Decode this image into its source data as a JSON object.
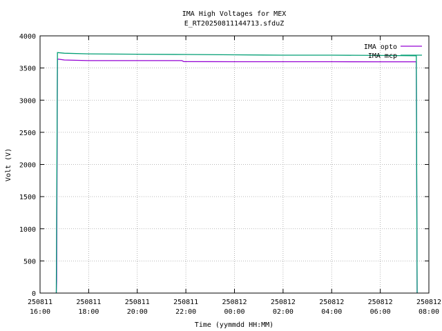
{
  "chart_data": {
    "type": "line",
    "title": "IMA High Voltages for MEX",
    "subtitle": "E_RT20250811144713.sfduZ",
    "xlabel": "Time (yymmdd HH:MM)",
    "ylabel": "Volt (V)",
    "xlim": [
      "250811 16:00",
      "250812 08:00"
    ],
    "ylim": [
      0,
      4000
    ],
    "grid": true,
    "legend_position": "top-right",
    "x_ticks": [
      {
        "date": "250811",
        "time": "16:00"
      },
      {
        "date": "250811",
        "time": "18:00"
      },
      {
        "date": "250811",
        "time": "20:00"
      },
      {
        "date": "250811",
        "time": "22:00"
      },
      {
        "date": "250812",
        "time": "00:00"
      },
      {
        "date": "250812",
        "time": "02:00"
      },
      {
        "date": "250812",
        "time": "04:00"
      },
      {
        "date": "250812",
        "time": "06:00"
      },
      {
        "date": "250812",
        "time": "08:00"
      }
    ],
    "y_ticks": [
      "0",
      "500",
      "1000",
      "1500",
      "2000",
      "2500",
      "3000",
      "3500",
      "4000"
    ],
    "series": [
      {
        "name": "IMA opto",
        "color": "#9400d3",
        "points": [
          [
            "250811 16:40",
            0
          ],
          [
            "250811 16:41",
            180
          ],
          [
            "250811 16:43",
            3640
          ],
          [
            "250811 17:00",
            3625
          ],
          [
            "250811 18:00",
            3615
          ],
          [
            "250811 20:00",
            3615
          ],
          [
            "250811 21:50",
            3615
          ],
          [
            "250811 21:55",
            3600
          ],
          [
            "250812 00:00",
            3598
          ],
          [
            "250812 02:00",
            3598
          ],
          [
            "250812 04:00",
            3598
          ],
          [
            "250812 06:00",
            3597
          ],
          [
            "250812 07:29",
            3597
          ],
          [
            "250812 07:31",
            0
          ]
        ]
      },
      {
        "name": "IMA mcp",
        "color": "#009e73",
        "points": [
          [
            "250811 16:40",
            0
          ],
          [
            "250811 16:43",
            3740
          ],
          [
            "250811 17:00",
            3730
          ],
          [
            "250811 18:00",
            3720
          ],
          [
            "250811 20:00",
            3715
          ],
          [
            "250811 22:00",
            3710
          ],
          [
            "250812 00:00",
            3705
          ],
          [
            "250812 02:00",
            3700
          ],
          [
            "250812 04:00",
            3700
          ],
          [
            "250812 06:00",
            3695
          ],
          [
            "250812 07:29",
            3690
          ],
          [
            "250812 07:31",
            0
          ]
        ]
      }
    ]
  }
}
